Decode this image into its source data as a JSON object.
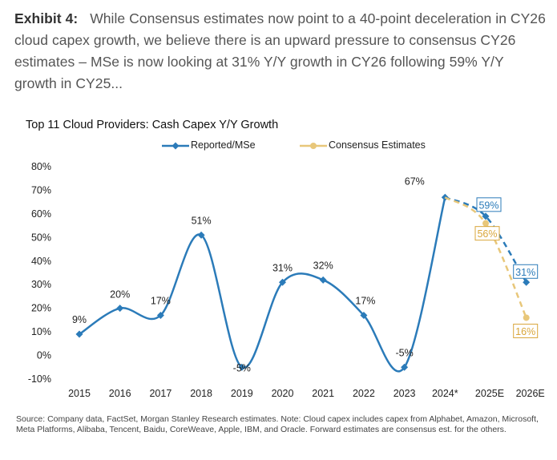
{
  "exhibit": {
    "label": "Exhibit 4:",
    "text": "While Consensus estimates now point to a 40-point deceleration in CY26 cloud capex growth, we believe there is an upward pressure to consensus CY26 estimates – MSe is now looking at 31% Y/Y growth in CY26 following 59% Y/Y growth in CY25..."
  },
  "chart_data": {
    "type": "line",
    "title": "Top 11 Cloud Providers: Cash Capex Y/Y Growth",
    "categories": [
      "2015",
      "2016",
      "2017",
      "2018",
      "2019",
      "2020",
      "2021",
      "2022",
      "2023",
      "2024*",
      "2025E",
      "2026E"
    ],
    "ylim": [
      -10,
      80
    ],
    "yticks": [
      "-10%",
      "0%",
      "10%",
      "20%",
      "30%",
      "40%",
      "50%",
      "60%",
      "70%",
      "80%"
    ],
    "legend_position": "top",
    "series": [
      {
        "name": "Reported/MSe",
        "color": "#2b7bb9",
        "values": [
          9,
          20,
          17,
          51,
          -5,
          31,
          32,
          17,
          -5,
          67,
          59,
          31
        ],
        "labels": [
          "9%",
          "20%",
          "17%",
          "51%",
          "-5%",
          "31%",
          "32%",
          "17%",
          "-5%",
          "67%",
          "59%",
          "31%"
        ]
      },
      {
        "name": "Consensus Estimates",
        "color": "#e8c77a",
        "values": [
          null,
          null,
          null,
          null,
          null,
          null,
          null,
          null,
          null,
          67,
          56,
          16
        ],
        "labels": [
          "",
          "",
          "",
          "",
          "",
          "",
          "",
          "",
          "",
          "",
          "56%",
          "16%"
        ]
      }
    ]
  },
  "source": "Source: Company data, FactSet, Morgan Stanley Research estimates. Note: Cloud capex includes capex from Alphabet, Amazon, Microsoft, Meta Platforms, Alibaba, Tencent, Baidu, CoreWeave, Apple, IBM, and Oracle. Forward estimates are consensus est. for the others."
}
